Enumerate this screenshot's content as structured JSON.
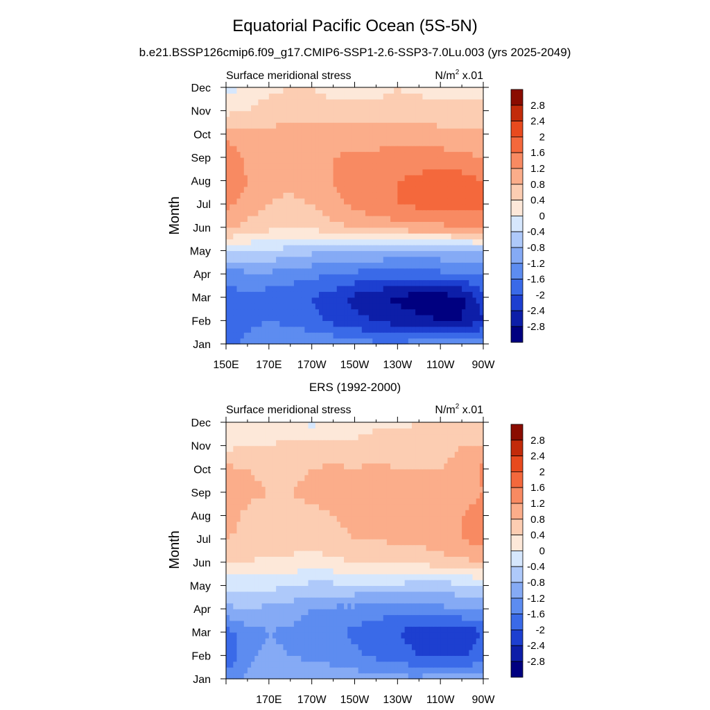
{
  "header": {
    "title": "Equatorial Pacific Ocean (5S-5N)",
    "subtitle": "b.e21.BSSP126cmip6.f09_g17.CMIP6-SSP1-2.6-SSP3-7.0Lu.003 (yrs 2025-2049)"
  },
  "levels": [
    -2.8,
    -2.4,
    -2,
    -1.6,
    -1.2,
    -0.8,
    -0.4,
    0,
    0.4,
    0.8,
    1.2,
    1.6,
    2,
    2.4,
    2.8
  ],
  "level_labels": [
    "-2.8",
    "-2.4",
    "-2",
    "-1.6",
    "-1.2",
    "-0.8",
    "-0.4",
    "0",
    "0.4",
    "0.8",
    "1.2",
    "1.6",
    "2",
    "2.4",
    "2.8"
  ],
  "colors": [
    "#000080",
    "#0d1ea8",
    "#1d3fd0",
    "#3a6ae8",
    "#5d8cf0",
    "#85aaf5",
    "#aec9fa",
    "#d6e7fd",
    "#fde8d9",
    "#fccdb2",
    "#fbad8a",
    "#f88a62",
    "#f4683c",
    "#e84a1e",
    "#c22b0a",
    "#8a0c00"
  ],
  "chart_data": [
    {
      "type": "heatmap",
      "panel_title": "",
      "left_label": "Surface meridional stress",
      "units_label": "N/m",
      "units_sup": "2",
      "units_suffix": " x.01",
      "ylabel": "Month",
      "yticks": [
        "Jan",
        "Feb",
        "Mar",
        "Apr",
        "May",
        "Jun",
        "Jul",
        "Aug",
        "Sep",
        "Oct",
        "Nov",
        "Dec"
      ],
      "xticks": [
        "150E",
        "170E",
        "170W",
        "150W",
        "130W",
        "110W",
        "90W"
      ],
      "x": [
        150,
        160,
        170,
        180,
        190,
        200,
        210,
        220,
        230,
        240,
        250,
        260,
        270
      ],
      "values": [
        [
          -1.8,
          -1.5,
          -1.3,
          -1.2,
          -1.2,
          -1.3,
          -1.4,
          -1.5,
          -1.5,
          -1.4,
          -1.3,
          -1.2,
          -1.2
        ],
        [
          -1.9,
          -1.7,
          -1.6,
          -1.7,
          -1.9,
          -2.1,
          -2.3,
          -2.4,
          -2.6,
          -2.7,
          -2.8,
          -2.8,
          -2.4
        ],
        [
          -1.8,
          -1.7,
          -1.8,
          -1.9,
          -2.0,
          -2.2,
          -2.5,
          -2.7,
          -2.9,
          -3.0,
          -3.0,
          -2.9,
          -2.2
        ],
        [
          -1.4,
          -1.3,
          -1.3,
          -1.4,
          -1.5,
          -1.6,
          -1.7,
          -1.8,
          -1.8,
          -1.8,
          -1.7,
          -1.6,
          -1.5
        ],
        [
          -0.3,
          -0.4,
          -0.4,
          -0.6,
          -0.7,
          -0.8,
          -0.8,
          -0.8,
          -0.9,
          -0.9,
          -0.9,
          -0.8,
          -0.7
        ],
        [
          0.9,
          0.7,
          0.5,
          0.4,
          0.5,
          0.7,
          0.8,
          0.9,
          1.0,
          1.1,
          1.1,
          1.2,
          1.3
        ],
        [
          1.3,
          1.0,
          0.8,
          0.7,
          0.8,
          1.1,
          1.3,
          1.5,
          1.6,
          1.7,
          1.7,
          1.8,
          1.7
        ],
        [
          1.5,
          1.2,
          0.9,
          0.9,
          1.0,
          1.2,
          1.4,
          1.5,
          1.6,
          1.7,
          1.8,
          1.8,
          1.6
        ],
        [
          1.6,
          1.1,
          1.0,
          1.0,
          1.1,
          1.2,
          1.3,
          1.3,
          1.4,
          1.4,
          1.4,
          1.3,
          1.2
        ],
        [
          1.0,
          0.9,
          0.9,
          0.9,
          0.9,
          1.0,
          1.0,
          1.0,
          1.0,
          1.0,
          0.9,
          0.9,
          0.9
        ],
        [
          0.3,
          0.4,
          0.6,
          0.7,
          0.7,
          0.6,
          0.6,
          0.5,
          0.5,
          0.6,
          0.6,
          0.5,
          0.4
        ],
        [
          -0.2,
          0.1,
          0.3,
          0.4,
          0.4,
          0.2,
          0.2,
          0.3,
          0.4,
          0.3,
          0.1,
          0.3,
          0.4
        ]
      ]
    },
    {
      "type": "heatmap",
      "panel_title": "ERS (1992-2000)",
      "left_label": "Surface meridional stress",
      "units_label": "N/m",
      "units_sup": "2",
      "units_suffix": " x.01",
      "ylabel": "Month",
      "yticks": [
        "Jan",
        "Feb",
        "Mar",
        "Apr",
        "May",
        "Jun",
        "Jul",
        "Aug",
        "Sep",
        "Oct",
        "Nov",
        "Dec"
      ],
      "xticks": [
        "170E",
        "170W",
        "150W",
        "130W",
        "110W",
        "90W"
      ],
      "x": [
        150,
        160,
        170,
        180,
        190,
        200,
        210,
        220,
        230,
        240,
        250,
        260,
        270
      ],
      "values": [
        [
          -1.4,
          -1.1,
          -0.9,
          -0.8,
          -0.8,
          -0.9,
          -1.0,
          -1.0,
          -1.1,
          -1.1,
          -1.0,
          -1.0,
          -1.0
        ],
        [
          -2.0,
          -1.3,
          -1.1,
          -1.2,
          -1.3,
          -1.4,
          -1.5,
          -1.7,
          -1.8,
          -2.0,
          -2.1,
          -2.1,
          -1.8
        ],
        [
          -1.8,
          -1.4,
          -1.2,
          -1.3,
          -1.4,
          -1.5,
          -1.7,
          -1.9,
          -2.0,
          -2.2,
          -2.3,
          -2.3,
          -2.0
        ],
        [
          -0.9,
          -0.8,
          -0.9,
          -1.0,
          -1.2,
          -1.3,
          -1.3,
          -1.4,
          -1.4,
          -1.5,
          -1.3,
          -1.2,
          -1.1
        ],
        [
          -0.3,
          -0.3,
          -0.3,
          -0.4,
          -0.5,
          -0.5,
          -0.5,
          -0.5,
          -0.5,
          -0.6,
          -0.6,
          -0.5,
          -0.4
        ],
        [
          0.5,
          0.4,
          0.3,
          0.3,
          0.2,
          0.3,
          0.4,
          0.4,
          0.5,
          0.5,
          0.6,
          0.7,
          0.8
        ],
        [
          0.8,
          0.7,
          0.6,
          0.6,
          0.6,
          0.7,
          0.8,
          0.8,
          0.9,
          0.9,
          1.1,
          1.2,
          1.4
        ],
        [
          1.0,
          0.7,
          0.6,
          0.7,
          0.7,
          0.8,
          0.9,
          0.9,
          1.0,
          1.0,
          1.0,
          1.2,
          1.4
        ],
        [
          1.2,
          0.9,
          0.8,
          0.8,
          0.9,
          0.9,
          1.0,
          1.0,
          1.0,
          1.1,
          1.0,
          1.0,
          1.2
        ],
        [
          0.9,
          0.8,
          0.7,
          0.7,
          0.8,
          0.9,
          0.8,
          0.9,
          0.8,
          0.8,
          0.8,
          0.9,
          1.3
        ],
        [
          0.3,
          0.4,
          0.4,
          0.5,
          0.5,
          0.5,
          0.5,
          0.6,
          0.6,
          0.7,
          0.7,
          0.8,
          0.8
        ],
        [
          0.1,
          0.1,
          0.2,
          0.1,
          -0.1,
          0.1,
          0.2,
          0.3,
          0.3,
          0.4,
          0.5,
          0.4,
          0.4
        ]
      ]
    }
  ]
}
